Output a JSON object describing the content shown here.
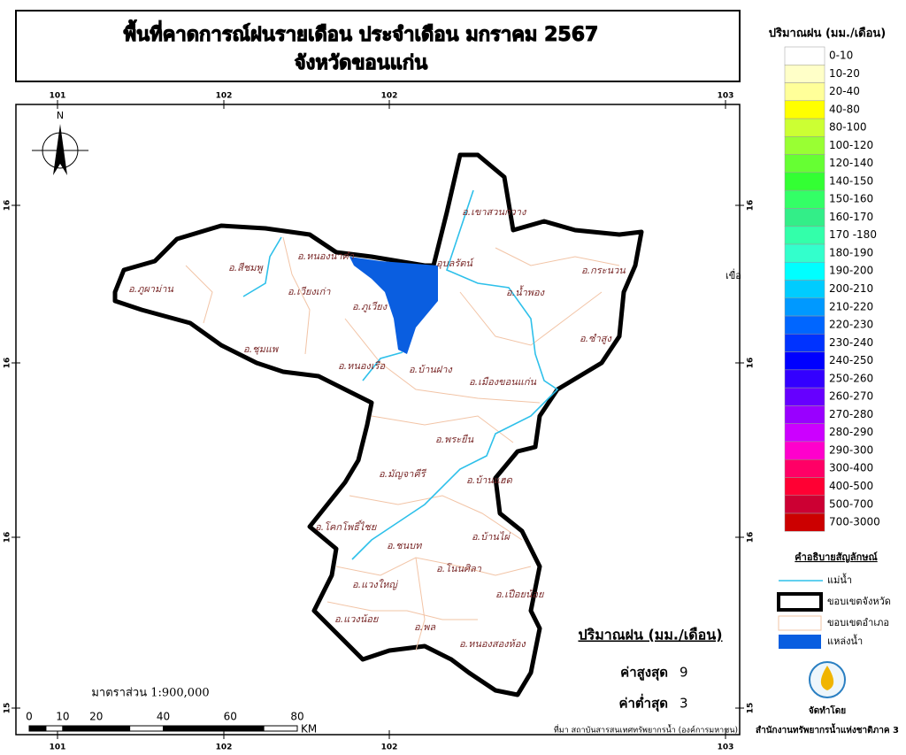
{
  "header": {
    "title": "พื้นที่คาดการณ์ฝนรายเดือน ประจำเดือน มกราคม 2567",
    "subtitle": "จังหวัดขอนแก่น"
  },
  "map": {
    "north": "N",
    "cut_label": "เขื่อ",
    "lon_ticks": [
      101,
      102,
      102,
      103
    ],
    "lat_ticks": [
      16,
      16,
      16,
      15
    ],
    "districts": [
      "อ.ภูผาม่าน",
      "อ.สีชมพู",
      "อ.หนองนาคำ",
      "อ.เวียงเก่า",
      "อ.ภูเวียง",
      "อ.ชุมแพ",
      "อ.หนองเรือ",
      "อ.บ้านฝาง",
      "อ.เขาสวนกวาง",
      "อุบลรัตน์",
      "อ.กระนวน",
      "อ.น้ำพอง",
      "อ.ซำสูง",
      "อ.เมืองขอนแก่น",
      "อ.พระยืน",
      "อ.มัญจาคีรี",
      "อ.บ้านแฮด",
      "อ.โคกโพธิ์ไชย",
      "อ.บ้านไผ่",
      "อ.ชนบท",
      "อ.โนนศิลา",
      "อ.แวงใหญ่",
      "อ.เปือยน้อย",
      "อ.แวงน้อย",
      "อ.พล",
      "อ.หนองสองห้อง"
    ]
  },
  "scale": {
    "text": "มาตราส่วน  1:900,000",
    "marks": [
      0,
      10,
      20,
      40,
      60,
      80
    ],
    "unit": "KM"
  },
  "stats": {
    "title": "ปริมาณฝน (มม./เดือน)",
    "max_label": "ค่าสูงสุด",
    "max": 9,
    "min_label": "ค่าต่ำสุด",
    "min": 3
  },
  "legend": {
    "title": "ปริมาณฝน (มม./เดือน)",
    "classes": [
      {
        "label": "0-10",
        "color": "#ffffff"
      },
      {
        "label": "10-20",
        "color": "#ffffc8"
      },
      {
        "label": "20-40",
        "color": "#ffff99"
      },
      {
        "label": "40-80",
        "color": "#ffff00"
      },
      {
        "label": "80-100",
        "color": "#ccff33"
      },
      {
        "label": "100-120",
        "color": "#99ff33"
      },
      {
        "label": "120-140",
        "color": "#66ff33"
      },
      {
        "label": "140-150",
        "color": "#33ff33"
      },
      {
        "label": "150-160",
        "color": "#33ff66"
      },
      {
        "label": "160-170",
        "color": "#33ee88"
      },
      {
        "label": "170 -180",
        "color": "#33ffaa"
      },
      {
        "label": "180-190",
        "color": "#33ffcc"
      },
      {
        "label": "190-200",
        "color": "#00ffff"
      },
      {
        "label": "200-210",
        "color": "#00ccff"
      },
      {
        "label": "210-220",
        "color": "#0099ff"
      },
      {
        "label": "220-230",
        "color": "#0066ff"
      },
      {
        "label": "230-240",
        "color": "#0033ff"
      },
      {
        "label": "240-250",
        "color": "#0000ff"
      },
      {
        "label": "250-260",
        "color": "#3300ff"
      },
      {
        "label": "260-270",
        "color": "#6600ff"
      },
      {
        "label": "270-280",
        "color": "#9900ff"
      },
      {
        "label": "280-290",
        "color": "#cc00ff"
      },
      {
        "label": "290-300",
        "color": "#ff00cc"
      },
      {
        "label": "300-400",
        "color": "#ff0066"
      },
      {
        "label": "400-500",
        "color": "#ff0033"
      },
      {
        "label": "500-700",
        "color": "#cc0033"
      },
      {
        "label": "700-3000",
        "color": "#cc0000"
      }
    ]
  },
  "symbols": {
    "title": "คำอธิบายสัญลักษณ์",
    "items": [
      "แม่น้ำ",
      "ขอบเขตจังหวัด",
      "ขอบเขตอำเภอ",
      "แหล่งน้ำ"
    ]
  },
  "footer": {
    "source": "ที่มา  สถาบันสารสนเทศทรัพยากรน้ำ (องค์การมหาชน)",
    "made_by": "จัดทำโดย",
    "agency": "สำนักงานทรัพยากรน้ำแห่งชาติภาค 3"
  }
}
